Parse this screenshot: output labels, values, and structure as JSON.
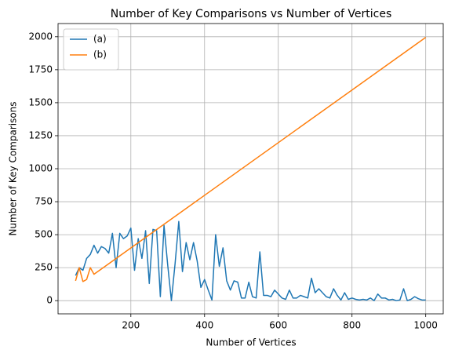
{
  "chart_data": {
    "type": "line",
    "title": "Number of Key Comparisons vs Number of Vertices",
    "xlabel": "Number of Vertices",
    "ylabel": "Number of Key Comparisons",
    "series": [
      {
        "name": "(a)",
        "color": "#1f77b4",
        "x": [
          50,
          60,
          70,
          80,
          90,
          100,
          110,
          120,
          130,
          140,
          150,
          160,
          170,
          180,
          190,
          200,
          210,
          220,
          230,
          240,
          250,
          260,
          270,
          280,
          290,
          300,
          310,
          320,
          330,
          340,
          350,
          360,
          370,
          380,
          390,
          400,
          410,
          420,
          430,
          440,
          450,
          460,
          470,
          480,
          490,
          500,
          510,
          520,
          530,
          540,
          550,
          560,
          570,
          580,
          590,
          600,
          610,
          620,
          630,
          640,
          650,
          660,
          670,
          680,
          690,
          700,
          710,
          720,
          730,
          740,
          750,
          760,
          770,
          780,
          790,
          800,
          810,
          820,
          830,
          840,
          850,
          860,
          870,
          880,
          890,
          900,
          910,
          920,
          930,
          940,
          950,
          960,
          970,
          980,
          990,
          1000
        ],
        "values": [
          190,
          250,
          230,
          320,
          350,
          420,
          360,
          410,
          395,
          360,
          510,
          250,
          510,
          470,
          490,
          550,
          230,
          470,
          320,
          530,
          130,
          540,
          530,
          30,
          570,
          270,
          0,
          280,
          600,
          220,
          440,
          310,
          440,
          300,
          100,
          160,
          80,
          5,
          500,
          260,
          400,
          150,
          80,
          150,
          140,
          20,
          20,
          140,
          30,
          20,
          370,
          40,
          40,
          30,
          80,
          50,
          20,
          10,
          80,
          20,
          20,
          40,
          30,
          20,
          170,
          60,
          90,
          60,
          30,
          20,
          90,
          40,
          5,
          60,
          10,
          20,
          10,
          5,
          10,
          5,
          20,
          0,
          50,
          20,
          20,
          5,
          10,
          0,
          5,
          90,
          0,
          10,
          30,
          15,
          5,
          5
        ]
      },
      {
        "name": "(b)",
        "color": "#ff7f0e",
        "x": [
          50,
          60,
          70,
          80,
          90,
          100,
          1000
        ],
        "values": [
          150,
          250,
          145,
          160,
          250,
          200,
          1995
        ]
      }
    ],
    "xlim": [
      2.5,
      1047.5
    ],
    "xticks": [
      200,
      400,
      600,
      800,
      1000
    ],
    "ylim": [
      -100,
      2100
    ],
    "yticks": [
      0,
      250,
      500,
      750,
      1000,
      1250,
      1500,
      1750,
      2000
    ],
    "grid": true,
    "legend": "upper left"
  }
}
